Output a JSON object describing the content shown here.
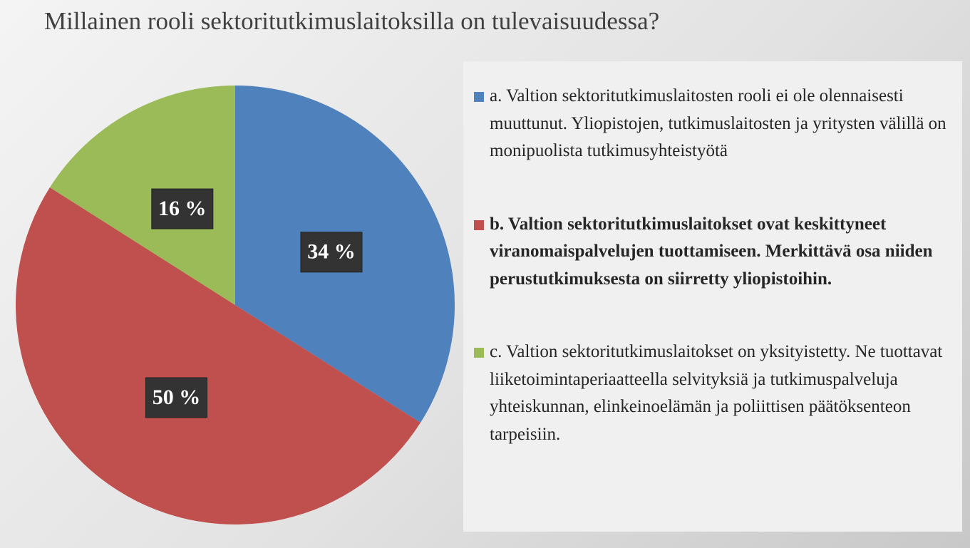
{
  "chart_data": {
    "type": "pie",
    "title": "Millainen rooli sektoritutkimuslaitoksilla on tulevaisuudessa?",
    "categories": [
      "a. Valtion sektoritutkimuslaitosten rooli ei ole olennaisesti muuttunut. Yliopistojen, tutkimuslaitosten ja yritysten välillä on monipuolista tutkimusyhteistyötä",
      "b. Valtion sektoritutkimuslaitokset ovat keskittyneet viranomaispalvelujen tuottamiseen. Merkittävä osa niiden perustutkimuksesta on siirretty yliopistoihin.",
      "c. Valtion sektoritutkimuslaitokset on yksityistetty. Ne tuottavat liiketoimintaperiaatteella selvityksiä ja tutkimuspalveluja yhteiskunnan, elinkeinoelämän ja poliittisen päätöksenteon tarpeisiin."
    ],
    "values": [
      34,
      50,
      16
    ],
    "value_labels": [
      "34 %",
      "50 %",
      "16 %"
    ],
    "colors": [
      "#4f81bd",
      "#c0504d",
      "#9bbb59"
    ],
    "legend": "right"
  }
}
